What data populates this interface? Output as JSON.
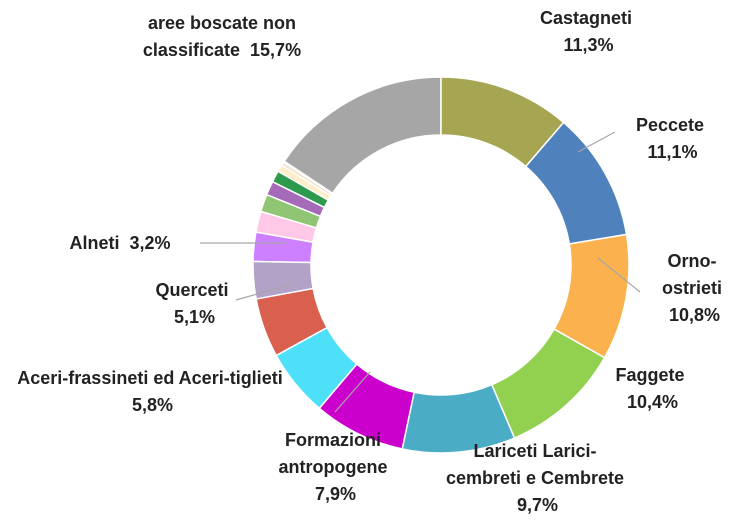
{
  "chart_data": {
    "type": "donut",
    "categories": [
      "Castagneti",
      "Peccete",
      "Orno-ostrieti",
      "Faggete",
      "Lariceti Larici-cembreti e Cembrete",
      "Formazioni antropogene",
      "Aceri-frassineti ed Aceri-tiglieti",
      "Querceti",
      "Alneti",
      null,
      null,
      null,
      null,
      null,
      null,
      null,
      null,
      "aree boscate non classificate"
    ],
    "values": [
      11.3,
      11.1,
      10.8,
      10.4,
      9.7,
      7.9,
      5.8,
      5.1,
      3.2,
      2.5,
      1.8,
      1.5,
      1.2,
      1.0,
      0.6,
      0.3,
      0.1,
      15.7
    ],
    "value_labels": [
      "11,3%",
      "11,1%",
      "10,8%",
      "10,4%",
      "9,7%",
      "7,9%",
      "5,8%",
      "5,1%",
      "3,2%",
      null,
      null,
      null,
      null,
      null,
      null,
      null,
      null,
      "15,7%"
    ],
    "colors": [
      "#a5a552",
      "#4f81bd",
      "#fbb24e",
      "#92d050",
      "#4bacc6",
      "#cc00cc",
      "#4ee0f8",
      "#d9604f",
      "#b3a2c7",
      "#cc80ff",
      "#ffc8e6",
      "#8fc573",
      "#a66bb8",
      "#2e9a4e",
      "#ffeec8",
      "#f5e0c8",
      "#3a3a6a",
      "#a6a6a6"
    ]
  }
}
